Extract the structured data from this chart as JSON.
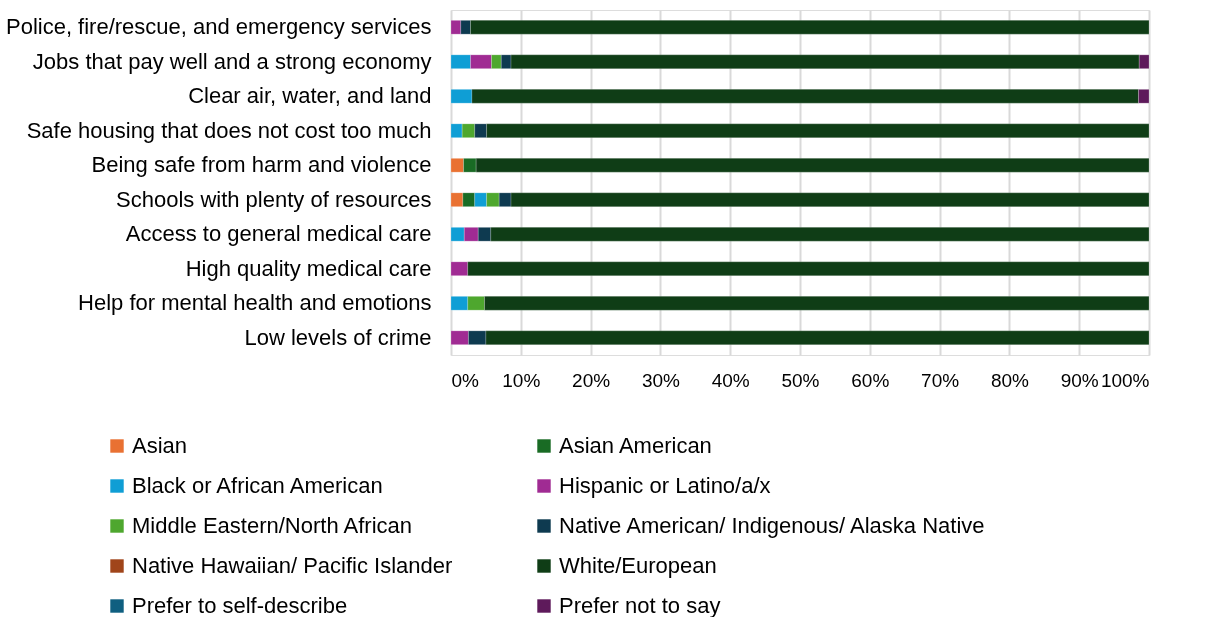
{
  "chart_data": {
    "type": "bar",
    "orientation": "horizontal",
    "stacked": true,
    "categories": [
      "Police, fire/rescue, and emergency services",
      "Jobs that pay well and a strong economy",
      "Clear air, water, and land",
      "Safe housing that does not cost too much",
      "Being safe from harm and violence",
      "Schools with plenty of resources",
      "Access to general medical care",
      "High quality medical care",
      "Help for mental health and emotions",
      "Low levels of crime"
    ],
    "series": [
      {
        "name": "Asian",
        "color": "#e97132",
        "values": [
          null,
          null,
          null,
          null,
          1.8,
          1.7,
          null,
          null,
          null,
          null
        ]
      },
      {
        "name": "Asian American",
        "color": "#196b24",
        "values": [
          null,
          null,
          null,
          null,
          1.8,
          1.7,
          null,
          null,
          null,
          null
        ]
      },
      {
        "name": "Black or African American",
        "color": "#0f9ed5",
        "values": [
          null,
          2.8,
          3.0,
          1.6,
          null,
          1.7,
          1.9,
          null,
          2.4,
          null
        ]
      },
      {
        "name": "Hispanic or Latino/a/x",
        "color": "#a02b93",
        "values": [
          1.4,
          3.0,
          null,
          null,
          null,
          null,
          2.0,
          2.4,
          null,
          2.5
        ]
      },
      {
        "name": "Middle Eastern/North African",
        "color": "#4ea72e",
        "values": [
          null,
          1.4,
          null,
          1.8,
          null,
          1.8,
          null,
          null,
          2.4,
          null
        ]
      },
      {
        "name": "Native American/ Indigenous/ Alaska Native",
        "color": "#0e3a50",
        "values": [
          1.4,
          1.4,
          null,
          1.7,
          null,
          1.7,
          1.8,
          null,
          null,
          2.5
        ]
      },
      {
        "name": "Native Hawaiian/ Pacific Islander",
        "color": "#a0451a",
        "values": [
          null,
          null,
          null,
          null,
          null,
          null,
          null,
          null,
          null,
          null
        ]
      },
      {
        "name": "White/European",
        "color": "#0f3d16",
        "values": [
          97.2,
          90.0,
          95.5,
          94.9,
          96.4,
          91.4,
          94.3,
          97.6,
          95.2,
          95.0
        ]
      },
      {
        "name": "Prefer to self-describe",
        "color": "#0f5f80",
        "values": [
          null,
          null,
          null,
          null,
          null,
          null,
          null,
          null,
          null,
          null
        ]
      },
      {
        "name": "Prefer not to say",
        "color": "#5e1a5b",
        "values": [
          null,
          1.4,
          1.5,
          null,
          null,
          null,
          null,
          null,
          null,
          null
        ]
      }
    ],
    "xlim": [
      0,
      100
    ],
    "xticks": [
      {
        "value": 0,
        "label": "0%"
      },
      {
        "value": 10,
        "label": "10%"
      },
      {
        "value": 20,
        "label": "20%"
      },
      {
        "value": 30,
        "label": "30%"
      },
      {
        "value": 40,
        "label": "40%"
      },
      {
        "value": 50,
        "label": "50%"
      },
      {
        "value": 60,
        "label": "60%"
      },
      {
        "value": 70,
        "label": "70%"
      },
      {
        "value": 80,
        "label": "80%"
      },
      {
        "value": 90,
        "label": "90%"
      },
      {
        "value": 100,
        "label": "100%"
      }
    ],
    "grid": "x",
    "legend": "bottom"
  }
}
